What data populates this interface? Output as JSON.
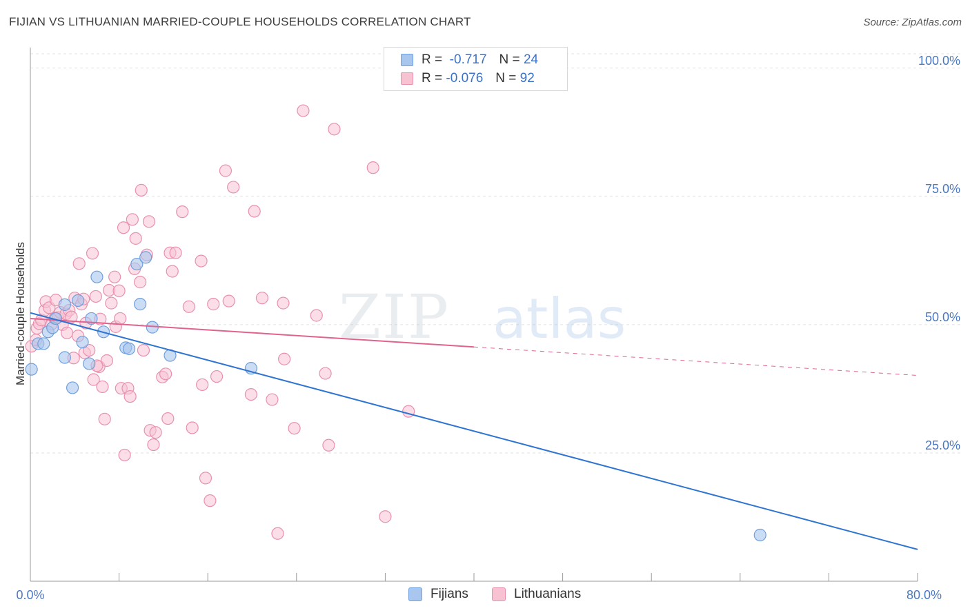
{
  "title": "FIJIAN VS LITHUANIAN MARRIED-COUPLE HOUSEHOLDS CORRELATION CHART",
  "source": "Source: ZipAtlas.com",
  "watermark": {
    "zip": "ZIP",
    "atlas": "atlas"
  },
  "legend": {
    "rows": [
      {
        "r_label": "R =",
        "r_value": "-0.717",
        "n_label": "N =",
        "n_value": "24",
        "color": "#a9c6ee",
        "border": "#6f9fdc"
      },
      {
        "r_label": "R =",
        "r_value": "-0.076",
        "n_label": "N =",
        "n_value": "92",
        "color": "#f7c3d3",
        "border": "#e890ad"
      }
    ]
  },
  "bottom_legend": {
    "fijians": "Fijians",
    "lithuanians": "Lithuanians"
  },
  "colors": {
    "fijian_fill": "#a9c6ee",
    "fijian_stroke": "#6f9fdc",
    "fijian_line": "#2f74d0",
    "lith_fill": "#f7c3d3",
    "lith_stroke": "#e890ad",
    "lith_line": "#e0628f",
    "grid": "#e2e2e2",
    "axis": "#9a9a9a",
    "tick_label": "#4a78c2"
  },
  "chart_data": {
    "type": "scatter",
    "title": "FIJIAN VS LITHUANIAN MARRIED-COUPLE HOUSEHOLDS CORRELATION CHART",
    "xlabel": "",
    "ylabel": "Married-couple Households",
    "xlim": [
      0,
      80
    ],
    "ylim": [
      0,
      104
    ],
    "x_tick_labels": [
      "0.0%",
      "80.0%"
    ],
    "y_ticks": [
      {
        "value": 25,
        "label": "25.0%"
      },
      {
        "value": 50,
        "label": "50.0%"
      },
      {
        "value": 75,
        "label": "75.0%"
      },
      {
        "value": 100,
        "label": "100.0%"
      }
    ],
    "series": [
      {
        "name": "Fijians",
        "r": -0.717,
        "n": 24,
        "points": [
          [
            0.1,
            41.3
          ],
          [
            0.7,
            46.3
          ],
          [
            1.2,
            46.3
          ],
          [
            1.6,
            48.6
          ],
          [
            2.0,
            49.4
          ],
          [
            2.3,
            51.2
          ],
          [
            3.1,
            43.6
          ],
          [
            3.8,
            37.7
          ],
          [
            3.1,
            53.9
          ],
          [
            4.3,
            54.7
          ],
          [
            4.7,
            46.6
          ],
          [
            5.3,
            42.4
          ],
          [
            5.5,
            51.2
          ],
          [
            6.0,
            59.3
          ],
          [
            6.6,
            48.6
          ],
          [
            8.6,
            45.5
          ],
          [
            8.9,
            45.3
          ],
          [
            9.6,
            61.8
          ],
          [
            9.9,
            54.0
          ],
          [
            10.4,
            63.1
          ],
          [
            11.0,
            49.5
          ],
          [
            12.6,
            44.0
          ],
          [
            19.9,
            41.5
          ],
          [
            65.8,
            9.0
          ]
        ],
        "trend": {
          "x0": 0,
          "y0": 52.3,
          "x1": 80,
          "y1": 6.2,
          "solid_to": 80
        }
      },
      {
        "name": "Lithuanians",
        "r": -0.076,
        "n": 92,
        "points": [
          [
            0.1,
            45.8
          ],
          [
            0.5,
            47.0
          ],
          [
            0.6,
            49.3
          ],
          [
            0.8,
            50.2
          ],
          [
            1.0,
            50.9
          ],
          [
            1.3,
            52.8
          ],
          [
            1.4,
            54.5
          ],
          [
            1.7,
            53.3
          ],
          [
            1.9,
            50.1
          ],
          [
            2.2,
            51.2
          ],
          [
            2.3,
            54.8
          ],
          [
            2.5,
            51.4
          ],
          [
            2.7,
            52.4
          ],
          [
            2.9,
            50.0
          ],
          [
            3.2,
            52.1
          ],
          [
            3.3,
            48.4
          ],
          [
            3.5,
            52.8
          ],
          [
            3.7,
            51.5
          ],
          [
            3.9,
            43.5
          ],
          [
            4.0,
            55.2
          ],
          [
            4.3,
            47.8
          ],
          [
            4.4,
            61.9
          ],
          [
            4.6,
            54.0
          ],
          [
            4.8,
            55.0
          ],
          [
            4.9,
            44.5
          ],
          [
            5.0,
            50.3
          ],
          [
            5.3,
            45.0
          ],
          [
            5.6,
            63.9
          ],
          [
            5.7,
            39.3
          ],
          [
            5.9,
            55.5
          ],
          [
            6.2,
            41.8
          ],
          [
            6.3,
            51.1
          ],
          [
            6.5,
            37.9
          ],
          [
            6.7,
            31.6
          ],
          [
            6.9,
            43.0
          ],
          [
            7.1,
            56.7
          ],
          [
            7.3,
            54.2
          ],
          [
            7.6,
            59.3
          ],
          [
            7.7,
            49.6
          ],
          [
            8.0,
            56.6
          ],
          [
            8.1,
            51.2
          ],
          [
            8.2,
            37.6
          ],
          [
            8.4,
            68.9
          ],
          [
            8.5,
            24.6
          ],
          [
            8.8,
            37.6
          ],
          [
            9.2,
            70.5
          ],
          [
            9.4,
            60.9
          ],
          [
            9.5,
            66.8
          ],
          [
            9.9,
            58.3
          ],
          [
            10.0,
            76.2
          ],
          [
            10.2,
            45.0
          ],
          [
            10.5,
            63.6
          ],
          [
            10.7,
            70.1
          ],
          [
            10.8,
            29.4
          ],
          [
            11.1,
            26.6
          ],
          [
            11.3,
            29.0
          ],
          [
            11.9,
            39.8
          ],
          [
            12.2,
            40.4
          ],
          [
            12.4,
            31.7
          ],
          [
            12.6,
            64.0
          ],
          [
            12.8,
            60.4
          ],
          [
            13.1,
            64.0
          ],
          [
            13.7,
            72.0
          ],
          [
            14.3,
            53.5
          ],
          [
            14.6,
            29.9
          ],
          [
            15.4,
            62.4
          ],
          [
            15.5,
            38.3
          ],
          [
            15.8,
            20.1
          ],
          [
            16.2,
            15.7
          ],
          [
            16.8,
            39.9
          ],
          [
            17.6,
            80.0
          ],
          [
            17.9,
            54.6
          ],
          [
            18.3,
            76.8
          ],
          [
            19.9,
            36.4
          ],
          [
            20.2,
            72.1
          ],
          [
            20.9,
            55.2
          ],
          [
            21.8,
            35.4
          ],
          [
            22.3,
            9.3
          ],
          [
            22.8,
            54.2
          ],
          [
            22.9,
            43.3
          ],
          [
            23.8,
            29.8
          ],
          [
            24.6,
            91.7
          ],
          [
            25.8,
            51.8
          ],
          [
            26.6,
            40.5
          ],
          [
            26.9,
            26.5
          ],
          [
            27.4,
            88.1
          ],
          [
            30.9,
            80.6
          ],
          [
            32.0,
            12.6
          ],
          [
            34.1,
            33.1
          ],
          [
            16.5,
            54.0
          ],
          [
            9.0,
            36.0
          ],
          [
            6.0,
            42.0
          ]
        ],
        "trend": {
          "x0": 0,
          "y0": 51.2,
          "x1": 80,
          "y1": 40.1,
          "solid_to": 40
        }
      }
    ]
  }
}
